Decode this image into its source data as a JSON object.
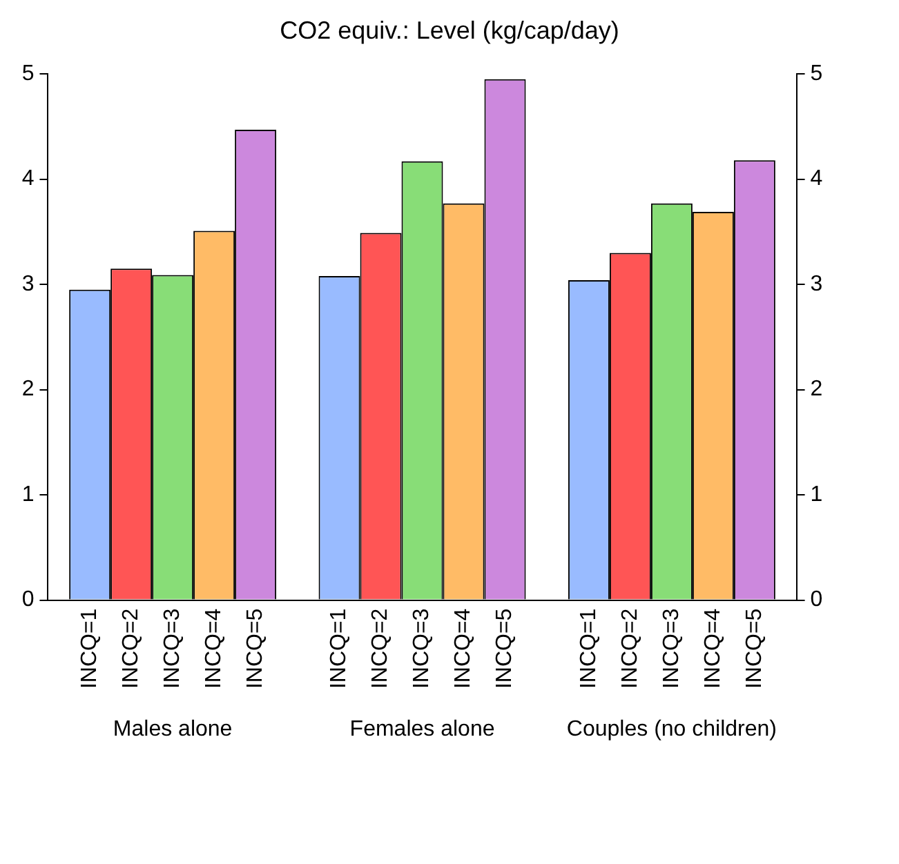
{
  "chart_data": {
    "type": "bar",
    "title": "CO2 equiv.: Level (kg/cap/day)",
    "categories": [
      "Males alone",
      "Females alone",
      "Couples (no children)"
    ],
    "series": [
      {
        "name": "INCQ=1",
        "color": "#99bbff",
        "values": [
          2.95,
          3.08,
          3.04
        ]
      },
      {
        "name": "INCQ=2",
        "color": "#ff5555",
        "values": [
          3.15,
          3.49,
          3.3
        ]
      },
      {
        "name": "INCQ=3",
        "color": "#88dd77",
        "values": [
          3.09,
          4.17,
          3.77
        ]
      },
      {
        "name": "INCQ=4",
        "color": "#ffbb66",
        "values": [
          3.51,
          3.77,
          3.69
        ]
      },
      {
        "name": "INCQ=5",
        "color": "#cc88dd",
        "values": [
          4.47,
          4.95,
          4.18
        ]
      }
    ],
    "ylim": [
      0,
      5
    ],
    "yticks": [
      0,
      1,
      2,
      3,
      4,
      5
    ],
    "y2lim": [
      0,
      5
    ],
    "y2ticks": [
      0,
      1,
      2,
      3,
      4,
      5
    ],
    "grid": false,
    "legend": false
  }
}
